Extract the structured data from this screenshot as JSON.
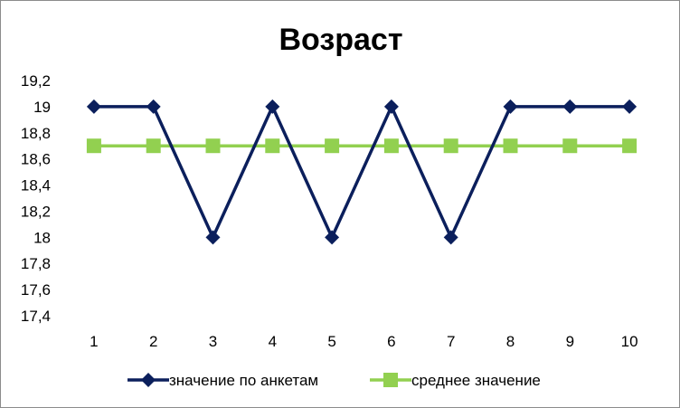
{
  "chart_data": {
    "type": "line",
    "title": "Возраст",
    "xlabel": "",
    "ylabel": "",
    "categories": [
      "1",
      "2",
      "3",
      "4",
      "5",
      "6",
      "7",
      "8",
      "9",
      "10"
    ],
    "ylim": [
      17.4,
      19.2
    ],
    "yticks": [
      "19,2",
      "19",
      "18,8",
      "18,6",
      "18,4",
      "18,2",
      "18",
      "17,8",
      "17,6",
      "17,4"
    ],
    "grid": false,
    "legend_position": "bottom",
    "series": [
      {
        "name": "значение по анкетам",
        "values": [
          19,
          19,
          18,
          19,
          18,
          19,
          18,
          19,
          19,
          19
        ],
        "color": "#0b1f5c",
        "marker": "diamond"
      },
      {
        "name": "среднее значение",
        "values": [
          18.7,
          18.7,
          18.7,
          18.7,
          18.7,
          18.7,
          18.7,
          18.7,
          18.7,
          18.7
        ],
        "color": "#92d050",
        "marker": "square"
      }
    ]
  }
}
